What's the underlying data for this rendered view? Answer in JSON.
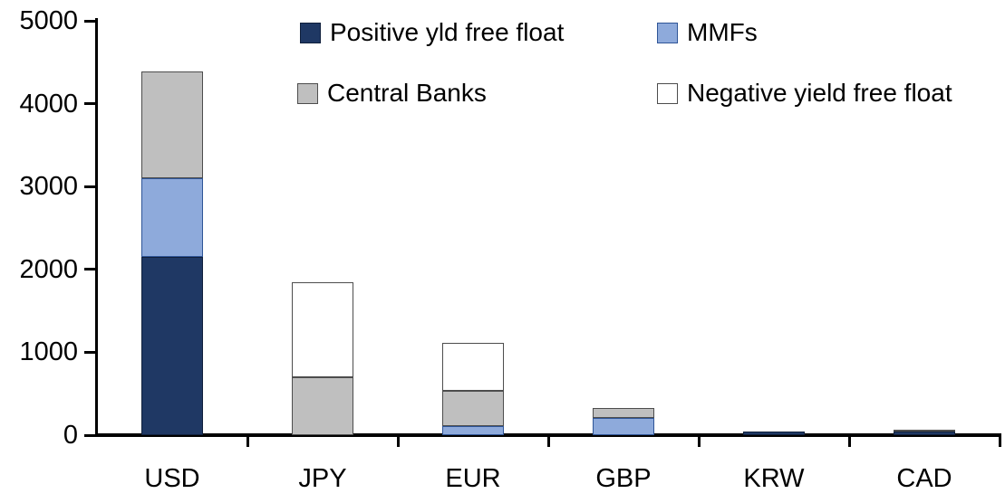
{
  "chart_data": {
    "type": "bar",
    "stacked": true,
    "title": "",
    "categories": [
      "USD",
      "JPY",
      "EUR",
      "GBP",
      "KRW",
      "CAD"
    ],
    "series": [
      {
        "name": "Positive yld free float",
        "color": "#1F3864",
        "border_color": "#10203C",
        "values": [
          2150,
          0,
          0,
          0,
          45,
          40
        ]
      },
      {
        "name": "MMFs",
        "color": "#8EAADB",
        "border_color": "#2F5597",
        "values": [
          950,
          0,
          110,
          210,
          0,
          0
        ]
      },
      {
        "name": "Central Banks",
        "color": "#BFBFBF",
        "border_color": "#4D4D4D",
        "values": [
          1290,
          700,
          430,
          120,
          0,
          25
        ]
      },
      {
        "name": "Negative yield free float",
        "color": "#FFFFFF",
        "border_color": "#4D4D4D",
        "values": [
          0,
          1150,
          570,
          0,
          0,
          0
        ]
      }
    ],
    "ylim": [
      0,
      5000
    ],
    "yticks": [
      0,
      1000,
      2000,
      3000,
      4000,
      5000
    ],
    "xlabel": "",
    "ylabel": "",
    "grid": false,
    "legend_position": "top, two rows",
    "axis_color": "#000000"
  }
}
